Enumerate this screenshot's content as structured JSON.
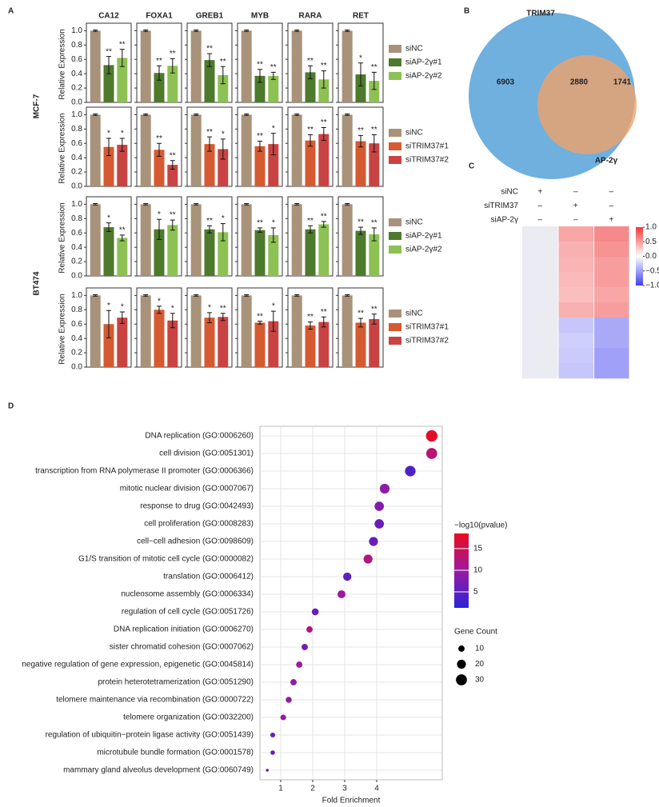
{
  "chart_data": [
    {
      "type": "bar-grid",
      "panel": "A",
      "genes": [
        "CA12",
        "FOXA1",
        "GREB1",
        "MYB",
        "RARA",
        "RET"
      ],
      "ylabel": "Relative Expression",
      "ylim": [
        0,
        1.06
      ],
      "yticks": [
        {
          "value": 0,
          "label": "0.0"
        },
        0.2,
        0.4,
        0.6,
        0.8,
        {
          "value": 1,
          "label": "1.0"
        }
      ],
      "rows": [
        {
          "cell_line": "MCF-7",
          "series": [
            {
              "name": "siNC",
              "color": "#a89279",
              "values": [
                1,
                1,
                1,
                1,
                1,
                1
              ],
              "errors": [
                0.01,
                0.01,
                0.01,
                0.01,
                0.01,
                0.01
              ]
            },
            {
              "name": "siAP-2γ#1",
              "color": "#4e7a2c",
              "values": [
                0.52,
                0.41,
                0.59,
                0.37,
                0.42,
                0.39
              ],
              "errors": [
                0.12,
                0.1,
                0.09,
                0.09,
                0.09,
                0.16
              ],
              "annotations": [
                "**",
                "**",
                "**",
                "**",
                "**",
                "*"
              ]
            },
            {
              "name": "siAP-2γ#2",
              "color": "#8dc153",
              "values": [
                0.62,
                0.51,
                0.38,
                0.37,
                0.32,
                0.3
              ],
              "errors": [
                0.12,
                0.1,
                0.12,
                0.05,
                0.12,
                0.12
              ],
              "annotations": [
                "**",
                "**",
                "**",
                "**",
                "**",
                "**"
              ]
            }
          ]
        },
        {
          "series": [
            {
              "name": "siNC",
              "color": "#a89279",
              "values": [
                1,
                1,
                1,
                1,
                1,
                1
              ],
              "errors": [
                0.01,
                0.01,
                0.01,
                0.01,
                0.01,
                0.01
              ]
            },
            {
              "name": "siTRIM37#1",
              "color": "#d55a31",
              "values": [
                0.55,
                0.51,
                0.59,
                0.56,
                0.64,
                0.63
              ],
              "errors": [
                0.12,
                0.09,
                0.1,
                0.07,
                0.08,
                0.08
              ],
              "annotations": [
                "*",
                "**",
                "**",
                "**",
                "**",
                "**"
              ]
            },
            {
              "name": "siTRIM37#2",
              "color": "#c94343",
              "values": [
                0.58,
                0.3,
                0.52,
                0.59,
                0.73,
                0.6
              ],
              "errors": [
                0.09,
                0.06,
                0.14,
                0.15,
                0.09,
                0.12
              ],
              "annotations": [
                "*",
                "**",
                "*",
                "*",
                "**",
                "**"
              ]
            }
          ]
        },
        {
          "cell_line": "BT474",
          "series": [
            {
              "name": "siNC",
              "color": "#a89279",
              "values": [
                1,
                1,
                1,
                1,
                1,
                1
              ],
              "errors": [
                0.01,
                0.01,
                0.01,
                0.01,
                0.01,
                0.01
              ]
            },
            {
              "name": "siAP-2γ#1",
              "color": "#4e7a2c",
              "values": [
                0.68,
                0.65,
                0.65,
                0.64,
                0.65,
                0.63
              ],
              "errors": [
                0.06,
                0.14,
                0.05,
                0.03,
                0.05,
                0.05
              ],
              "annotations": [
                "*",
                "*",
                "**",
                "**",
                "**",
                "**"
              ]
            },
            {
              "name": "siAP-2γ#2",
              "color": "#8dc153",
              "values": [
                0.53,
                0.71,
                0.61,
                0.57,
                0.72,
                0.58
              ],
              "errors": [
                0.04,
                0.07,
                0.12,
                0.1,
                0.04,
                0.09
              ],
              "annotations": [
                "**",
                "**",
                "*",
                "*",
                "**",
                "**"
              ]
            }
          ]
        },
        {
          "series": [
            {
              "name": "siNC",
              "color": "#a89279",
              "values": [
                1,
                1,
                1,
                1,
                1,
                1
              ],
              "errors": [
                0.01,
                0.01,
                0.01,
                0.01,
                0.01,
                0.01
              ]
            },
            {
              "name": "siTRIM37#1",
              "color": "#d55a31",
              "values": [
                0.6,
                0.8,
                0.69,
                0.62,
                0.58,
                0.62
              ],
              "errors": [
                0.19,
                0.05,
                0.07,
                0.02,
                0.05,
                0.06
              ],
              "annotations": [
                "*",
                "*",
                "*",
                "**",
                "**",
                "**"
              ]
            },
            {
              "name": "siTRIM37#2",
              "color": "#c94343",
              "values": [
                0.69,
                0.65,
                0.7,
                0.64,
                0.63,
                0.67
              ],
              "errors": [
                0.08,
                0.1,
                0.05,
                0.14,
                0.07,
                0.07
              ],
              "annotations": [
                "*",
                "*",
                "**",
                "*",
                "**",
                "**"
              ]
            }
          ]
        }
      ]
    },
    {
      "type": "venn",
      "panel": "B",
      "sets": [
        {
          "name": "TRIM37",
          "color": "#6fb0df"
        },
        {
          "name": "AP-2γ",
          "color": "#f2a066"
        }
      ],
      "values": [
        6903,
        2880,
        1741
      ]
    },
    {
      "type": "heatmap",
      "panel": "C",
      "conditions": [
        {
          "name": "siNC",
          "signs": [
            "+",
            "–",
            "–"
          ]
        },
        {
          "name": "siTRIM37",
          "signs": [
            "–",
            "+",
            "–"
          ]
        },
        {
          "name": "siAP-2γ",
          "signs": [
            "–",
            "–",
            "+"
          ]
        }
      ],
      "values": [
        [
          0,
          0.45,
          0.6
        ],
        [
          0,
          0.4,
          0.55
        ],
        [
          0,
          0.38,
          0.5
        ],
        [
          0,
          0.35,
          0.5
        ],
        [
          0,
          0.33,
          0.45
        ],
        [
          0,
          0.4,
          0.5
        ],
        [
          0,
          -0.3,
          -0.45
        ],
        [
          0,
          -0.25,
          -0.45
        ],
        [
          0,
          -0.28,
          -0.5
        ],
        [
          0,
          -0.3,
          -0.5
        ]
      ],
      "zlim": [
        -1,
        1
      ],
      "zticks": [
        {
          "value": 1,
          "label": "1.0"
        },
        0.5,
        {
          "value": 0,
          "label": "0.0"
        },
        {
          "value": -0.5,
          "label": "−0.5"
        },
        {
          "value": -1,
          "label": "−1.0"
        }
      ],
      "colors": [
        "#4040f0",
        "#ffffff",
        "#f03a3a"
      ]
    },
    {
      "type": "bubble",
      "panel": "D",
      "categories": [
        "DNA replication (GO:0006260)",
        "cell division (GO:0051301)",
        "transcription from RNA polymerase II promoter (GO:0006366)",
        "mitotic nuclear division (GO:0007067)",
        "response to drug (GO:0042493)",
        "cell proliferation (GO:0008283)",
        "cell−cell adhesion (GO:0098609)",
        "G1/S transition of mitotic cell cycle (GO:0000082)",
        "translation (GO:0006412)",
        "nucleosome assembly (GO:0006334)",
        "regulation of cell cycle (GO:0051726)",
        "DNA replication initiation (GO:0006270)",
        "sister chromatid cohesion (GO:0007062)",
        "negative regulation of gene expression, epigenetic (GO:0045814)",
        "protein heterotetramerization (GO:0051290)",
        "telomere maintenance via recombination (GO:0000722)",
        "telomere organization (GO:0032200)",
        "regulation of ubiquitin−protein ligase activity (GO:0051439)",
        "microtubule bundle formation (GO:0001578)",
        "mammary gland alveolus development (GO:0060749)"
      ],
      "x": [
        5.72,
        5.72,
        5.05,
        4.25,
        4.08,
        4.08,
        3.9,
        3.73,
        3.08,
        2.9,
        2.08,
        1.9,
        1.75,
        1.58,
        1.4,
        1.25,
        1.08,
        0.75,
        0.75,
        0.58
      ],
      "color_values": [
        18,
        13,
        4,
        9,
        8,
        6,
        6,
        12,
        5,
        10,
        6,
        12,
        7,
        10,
        9,
        9,
        9,
        6,
        6,
        5
      ],
      "sizes": [
        33,
        30,
        28,
        24,
        22,
        22,
        20,
        20,
        17,
        16,
        12,
        10,
        10,
        10,
        10,
        9,
        8,
        6,
        5,
        2
      ],
      "xlabel": "Fold Enrichment",
      "xlim": [
        0.35,
        6.05
      ],
      "xticks": [
        1,
        2,
        3,
        4
      ],
      "grid": true,
      "color_title": "−log10(pvalue)",
      "zlim": [
        1.3,
        18.5
      ],
      "zticks": [
        5,
        10,
        15
      ],
      "cmap": [
        "#2b23d8",
        "#9c1aa2",
        "#ea0b1f"
      ],
      "size_title": "Gene Count",
      "size_ticks": [
        10,
        20,
        30
      ]
    }
  ]
}
